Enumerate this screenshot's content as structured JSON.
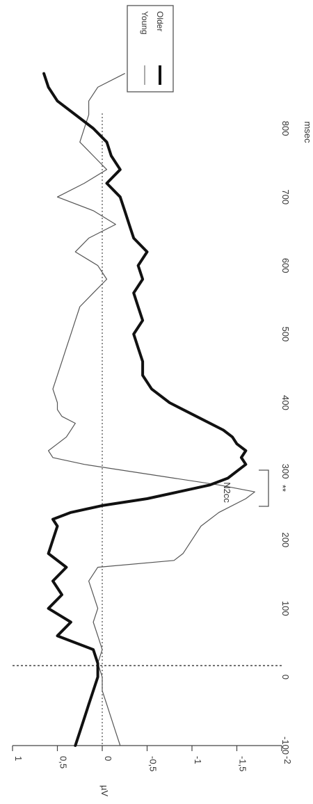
{
  "chart_data": {
    "type": "line",
    "orientation": "rotated-90-clockwise",
    "xlabel": "msec",
    "ylabel": "µV",
    "xlim": [
      -100,
      900
    ],
    "ylim": [
      -2,
      1
    ],
    "y_inverted": true,
    "x_ticks": [
      "-100",
      "0",
      "100",
      "200",
      "300",
      "400",
      "500",
      "600",
      "700",
      "800"
    ],
    "y_ticks": [
      "1",
      "0,5",
      "0",
      "-0,5",
      "-1",
      "-1,5",
      "-2"
    ],
    "grid": false,
    "zero_line": "dotted",
    "onset_marker_ms": 0,
    "legend_position": "top-right",
    "annotations": [
      "N2cc",
      "**"
    ],
    "series": [
      {
        "name": "Young",
        "style": "thin",
        "x": [
          -100,
          -80,
          -60,
          -40,
          -20,
          0,
          20,
          40,
          60,
          80,
          100,
          120,
          140,
          160,
          170,
          180,
          200,
          220,
          240,
          260,
          270,
          280,
          290,
          300,
          310,
          320,
          330,
          340,
          350,
          360,
          370,
          380,
          390,
          400,
          420,
          440,
          460,
          480,
          500,
          520,
          540,
          560,
          580,
          600,
          620,
          640,
          660,
          680,
          700,
          720,
          740,
          760,
          780,
          800,
          820,
          840,
          860,
          880
        ],
        "y": [
          -0.2,
          -0.15,
          -0.1,
          -0.05,
          0,
          0,
          0.05,
          0,
          0.05,
          0.1,
          0.05,
          0.1,
          0.15,
          0.05,
          -0.8,
          -0.9,
          -1,
          -1.1,
          -1.3,
          -1.6,
          -1.7,
          -1.3,
          -0.8,
          -0.3,
          0.2,
          0.55,
          0.6,
          0.5,
          0.4,
          0.35,
          0.3,
          0.45,
          0.5,
          0.5,
          0.55,
          0.5,
          0.45,
          0.4,
          0.35,
          0.3,
          0.25,
          0.1,
          -0.05,
          0.05,
          0.3,
          0.15,
          -0.15,
          0.1,
          0.5,
          0.2,
          -0.05,
          0.1,
          0.25,
          0.2,
          0.15,
          0.15,
          0.05,
          -0.25
        ]
      },
      {
        "name": "Older",
        "style": "thick",
        "x": [
          -100,
          -80,
          -60,
          -40,
          -20,
          0,
          20,
          40,
          50,
          60,
          80,
          100,
          120,
          140,
          160,
          180,
          200,
          220,
          230,
          240,
          250,
          260,
          270,
          280,
          290,
          300,
          310,
          320,
          330,
          340,
          350,
          360,
          380,
          400,
          420,
          440,
          460,
          480,
          500,
          520,
          540,
          560,
          580,
          600,
          620,
          640,
          660,
          680,
          700,
          720,
          740,
          760,
          780,
          800,
          820,
          840,
          860,
          880
        ],
        "y": [
          0.3,
          0.25,
          0.2,
          0.15,
          0.1,
          0.05,
          0.05,
          0.1,
          0.3,
          0.5,
          0.35,
          0.6,
          0.45,
          0.55,
          0.4,
          0.6,
          0.55,
          0.5,
          0.55,
          0.35,
          0,
          -0.5,
          -0.85,
          -1.2,
          -1.4,
          -1.5,
          -1.6,
          -1.55,
          -1.6,
          -1.5,
          -1.45,
          -1.35,
          -1.05,
          -0.75,
          -0.55,
          -0.45,
          -0.45,
          -0.4,
          -0.35,
          -0.45,
          -0.4,
          -0.35,
          -0.45,
          -0.4,
          -0.5,
          -0.35,
          -0.3,
          -0.25,
          -0.2,
          -0.05,
          -0.2,
          -0.1,
          -0.05,
          0.1,
          0.3,
          0.5,
          0.6,
          0.65
        ]
      }
    ]
  }
}
